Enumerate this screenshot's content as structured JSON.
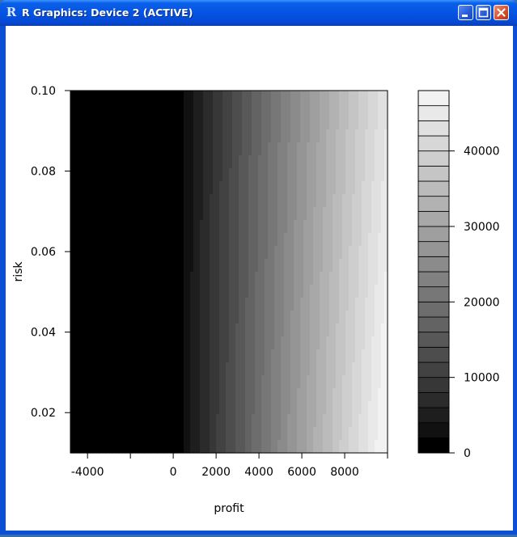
{
  "window": {
    "title": "R Graphics: Device 2 (ACTIVE)",
    "app_icon": "R-logo-icon",
    "buttons": [
      "minimize-icon",
      "maximize-icon",
      "close-icon"
    ],
    "titlebar_color": "#0554e3"
  },
  "chart_data": {
    "type": "heatmap",
    "title": "",
    "xlabel": "profit",
    "ylabel": "risk",
    "x_ticks": [
      -4000,
      0,
      2000,
      4000,
      6000,
      8000
    ],
    "x_tick_labels": [
      "-4000",
      "0",
      "2000",
      "4000",
      "6000",
      "8000"
    ],
    "x_extra_tick_marks": [
      -2000
    ],
    "xlim": [
      -4800,
      10000
    ],
    "y_ticks": [
      0.02,
      0.04,
      0.06,
      0.08,
      0.1
    ],
    "y_tick_labels": [
      "0.02",
      "0.04",
      "0.06",
      "0.08",
      "0.10"
    ],
    "ylim": [
      0.01,
      0.1
    ],
    "z_range": [
      0,
      48000
    ],
    "levels": [
      0,
      2000,
      4000,
      6000,
      8000,
      10000,
      12000,
      14000,
      16000,
      18000,
      20000,
      22000,
      24000,
      26000,
      28000,
      30000,
      32000,
      34000,
      36000,
      38000,
      40000,
      42000,
      44000,
      46000,
      48000
    ],
    "legend_ticks": [
      0,
      10000,
      20000,
      30000,
      40000
    ],
    "legend_tick_labels": [
      "0",
      "10000",
      "20000",
      "30000",
      "40000"
    ],
    "legend_placement": "right",
    "palette": "grayscale black-to-white",
    "surface": "value ≈ 0 for profit ≤ 0, rising with profit (≈ 48000 at profit 10000) and slightly with lower risk",
    "grid": false
  }
}
